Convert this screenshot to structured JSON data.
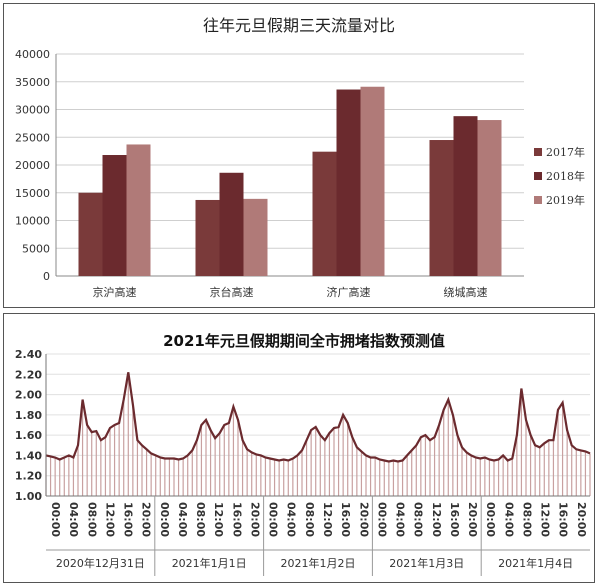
{
  "chart_data": [
    {
      "type": "bar",
      "title": "往年元旦假期三天流量对比",
      "categories": [
        "京沪高速",
        "京台高速",
        "济广高速",
        "绕城高速"
      ],
      "series": [
        {
          "name": "2017年",
          "values": [
            15000,
            13700,
            22400,
            24500
          ]
        },
        {
          "name": "2018年",
          "values": [
            21800,
            18600,
            33600,
            28800
          ]
        },
        {
          "name": "2019年",
          "values": [
            23700,
            13900,
            34100,
            28100
          ]
        }
      ],
      "colors": [
        "#7a3a3a",
        "#6b2a2e",
        "#b07a78"
      ],
      "ylim": [
        0,
        40000
      ],
      "yticks": [
        "0",
        "5000",
        "10000",
        "15000",
        "20000",
        "25000",
        "30000",
        "35000",
        "40000"
      ],
      "grid": "horizontal",
      "legend": "right"
    },
    {
      "type": "line",
      "title": "2021年元旦假期期间全市拥堵指数预测值",
      "ylim": [
        1.0,
        2.4
      ],
      "yticks": [
        "1.00",
        "1.20",
        "1.40",
        "1.60",
        "1.80",
        "2.00",
        "2.20",
        "2.40"
      ],
      "hour_labels": [
        "00:00",
        "04:00",
        "08:00",
        "12:00",
        "16:00",
        "20:00"
      ],
      "days": [
        "2020年12月31日",
        "2021年1月1日",
        "2021年1月2日",
        "2021年1月3日",
        "2021年1月4日"
      ],
      "values_per_hour": [
        [
          1.4,
          1.39,
          1.38,
          1.36,
          1.38,
          1.4,
          1.38,
          1.5,
          1.95,
          1.7,
          1.63,
          1.64,
          1.55,
          1.58,
          1.67,
          1.7,
          1.72,
          1.95,
          2.22,
          1.9,
          1.55,
          1.5,
          1.46,
          1.42
        ],
        [
          1.4,
          1.38,
          1.37,
          1.37,
          1.37,
          1.36,
          1.37,
          1.4,
          1.45,
          1.55,
          1.7,
          1.75,
          1.65,
          1.57,
          1.62,
          1.7,
          1.72,
          1.88,
          1.75,
          1.55,
          1.46,
          1.43,
          1.41,
          1.4
        ],
        [
          1.38,
          1.37,
          1.36,
          1.35,
          1.36,
          1.35,
          1.37,
          1.4,
          1.45,
          1.55,
          1.65,
          1.68,
          1.6,
          1.55,
          1.62,
          1.67,
          1.68,
          1.8,
          1.72,
          1.58,
          1.48,
          1.44,
          1.4,
          1.38
        ],
        [
          1.38,
          1.36,
          1.35,
          1.34,
          1.35,
          1.34,
          1.35,
          1.4,
          1.45,
          1.5,
          1.58,
          1.6,
          1.55,
          1.58,
          1.7,
          1.85,
          1.95,
          1.8,
          1.6,
          1.48,
          1.43,
          1.4,
          1.38,
          1.37
        ],
        [
          1.38,
          1.36,
          1.35,
          1.36,
          1.4,
          1.35,
          1.37,
          1.6,
          2.06,
          1.75,
          1.6,
          1.5,
          1.48,
          1.52,
          1.55,
          1.55,
          1.85,
          1.92,
          1.65,
          1.5,
          1.46,
          1.45,
          1.44,
          1.42
        ]
      ],
      "line_color": "#6b2a2e",
      "fill_color": "#c8a0a0"
    }
  ]
}
